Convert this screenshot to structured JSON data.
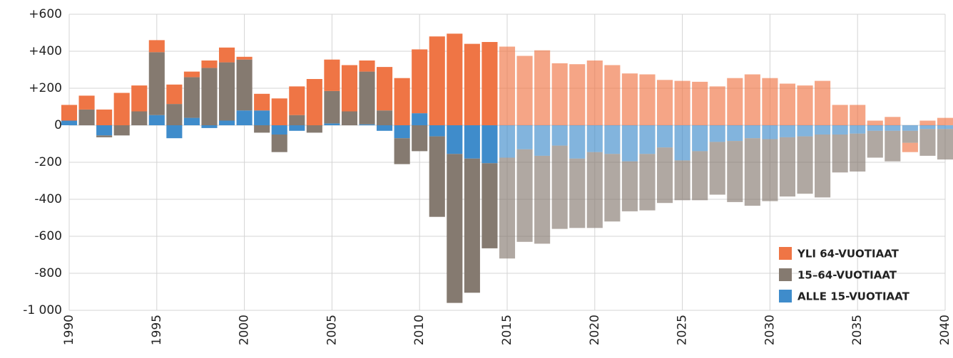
{
  "chart_data": {
    "type": "bar",
    "stacked": true,
    "x": [
      1990,
      1991,
      1992,
      1993,
      1994,
      1995,
      1996,
      1997,
      1998,
      1999,
      2000,
      2001,
      2002,
      2003,
      2004,
      2005,
      2006,
      2007,
      2008,
      2009,
      2010,
      2011,
      2012,
      2013,
      2014,
      2015,
      2016,
      2017,
      2018,
      2019,
      2020,
      2021,
      2022,
      2023,
      2024,
      2025,
      2026,
      2027,
      2028,
      2029,
      2030,
      2031,
      2032,
      2033,
      2034,
      2035,
      2036,
      2037,
      2038,
      2039,
      2040
    ],
    "series": [
      {
        "name": "YLI 64-VUOTIAAT",
        "color": "#ef7545",
        "values": [
          85,
          75,
          85,
          175,
          140,
          65,
          105,
          30,
          40,
          80,
          15,
          90,
          145,
          155,
          250,
          170,
          250,
          60,
          235,
          255,
          345,
          480,
          495,
          440,
          450,
          425,
          375,
          405,
          335,
          330,
          350,
          325,
          280,
          275,
          245,
          240,
          235,
          210,
          255,
          275,
          255,
          225,
          215,
          240,
          110,
          110,
          25,
          45,
          -50,
          25,
          40
        ]
      },
      {
        "name": "15–64-VUOTIAAT",
        "color": "#857a70",
        "values": [
          0,
          85,
          -10,
          -55,
          75,
          340,
          115,
          220,
          310,
          315,
          275,
          -40,
          -95,
          55,
          -40,
          175,
          75,
          285,
          80,
          -140,
          -140,
          -435,
          -805,
          -725,
          -460,
          -545,
          -500,
          -475,
          -450,
          -375,
          -410,
          -365,
          -270,
          -305,
          -300,
          -215,
          -265,
          -285,
          -330,
          -365,
          -335,
          -320,
          -310,
          -340,
          -205,
          -205,
          -145,
          -165,
          -65,
          -145,
          -165
        ]
      },
      {
        "name": "ALLE 15-VUOTIAAT",
        "color": "#3f8ccb",
        "values": [
          25,
          0,
          -55,
          0,
          0,
          55,
          -70,
          40,
          -15,
          25,
          80,
          80,
          -50,
          -30,
          0,
          10,
          0,
          5,
          -30,
          -70,
          65,
          -60,
          -155,
          -180,
          -205,
          -175,
          -130,
          -165,
          -110,
          -180,
          -145,
          -155,
          -195,
          -155,
          -120,
          -190,
          -140,
          -90,
          -85,
          -70,
          -75,
          -65,
          -60,
          -50,
          -50,
          -45,
          -30,
          -30,
          -30,
          -20,
          -20
        ]
      }
    ],
    "forecast_from": 2015,
    "forecast_opacity": 0.65,
    "xlim": [
      1990,
      2040
    ],
    "xticks": [
      1990,
      1995,
      2000,
      2005,
      2010,
      2015,
      2020,
      2025,
      2030,
      2035,
      2040
    ],
    "ylim": [
      -1000,
      600
    ],
    "yticks": [
      {
        "value": 600,
        "label": "+600"
      },
      {
        "value": 400,
        "label": "+400"
      },
      {
        "value": 200,
        "label": "+200"
      },
      0,
      -200,
      -400,
      -600,
      -800,
      {
        "value": -1000,
        "label": "-1 000"
      }
    ],
    "grid": true,
    "legend": "lower right"
  }
}
